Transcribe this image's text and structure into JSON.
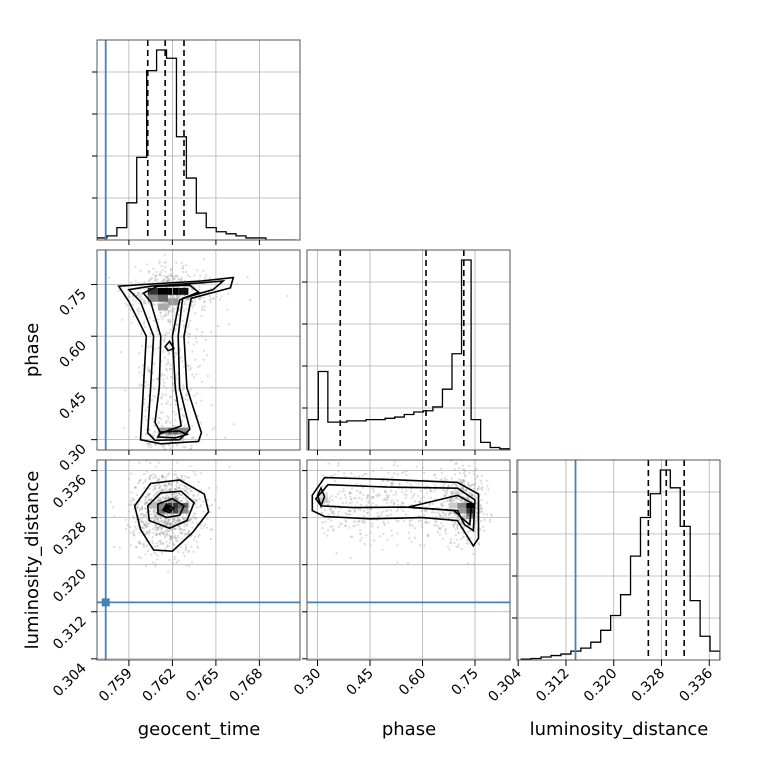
{
  "chart_data": {
    "type": "corner",
    "parameters": [
      "geocent_time",
      "phase",
      "luminosity_distance"
    ],
    "injection": {
      "geocent_time": 0.7574,
      "luminosity_distance": 0.3136
    },
    "colors": {
      "injection": "#4682b4",
      "hist": "#000000",
      "grid": "#b0b0b0",
      "samples": "#999999"
    },
    "axes": {
      "geocent_time": {
        "range": [
          0.7568,
          0.7708
        ],
        "ticks": [
          0.759,
          0.762,
          0.765,
          0.768
        ],
        "tick_labels": [
          "0.759",
          "0.762",
          "0.765",
          "0.768"
        ]
      },
      "phase": {
        "range": [
          0.27,
          0.85
        ],
        "ticks": [
          0.3,
          0.45,
          0.6,
          0.75
        ],
        "tick_labels": [
          "0.30",
          "0.45",
          "0.60",
          "0.75"
        ]
      },
      "luminosity_distance": {
        "range": [
          0.3038,
          0.3378
        ],
        "ticks": [
          0.304,
          0.312,
          0.32,
          0.328,
          0.336
        ],
        "tick_labels": [
          "0.304",
          "0.312",
          "0.320",
          "0.328",
          "0.336"
        ]
      }
    },
    "quantiles": {
      "geocent_time": [
        0.7603,
        0.7615,
        0.7628
      ],
      "phase": [
        0.365,
        0.61,
        0.718
      ],
      "luminosity_distance": [
        0.3258,
        0.3288,
        0.3318
      ]
    },
    "histograms": {
      "geocent_time": [
        1,
        2,
        6,
        18,
        40,
        82,
        92,
        88,
        50,
        30,
        13,
        6,
        4,
        3,
        2,
        1,
        1,
        0,
        0,
        0
      ],
      "phase": [
        12,
        31,
        11,
        11,
        11.5,
        11.5,
        12,
        12,
        12.5,
        13,
        14,
        15,
        15.5,
        17,
        24,
        38,
        75,
        12,
        3,
        1,
        0.5
      ],
      "luminosity_distance": [
        0.3,
        0.5,
        1,
        1.5,
        2,
        3,
        4,
        6,
        10,
        15,
        22,
        35,
        48,
        56,
        64,
        58,
        45,
        20,
        8,
        3
      ]
    },
    "grid": true
  }
}
